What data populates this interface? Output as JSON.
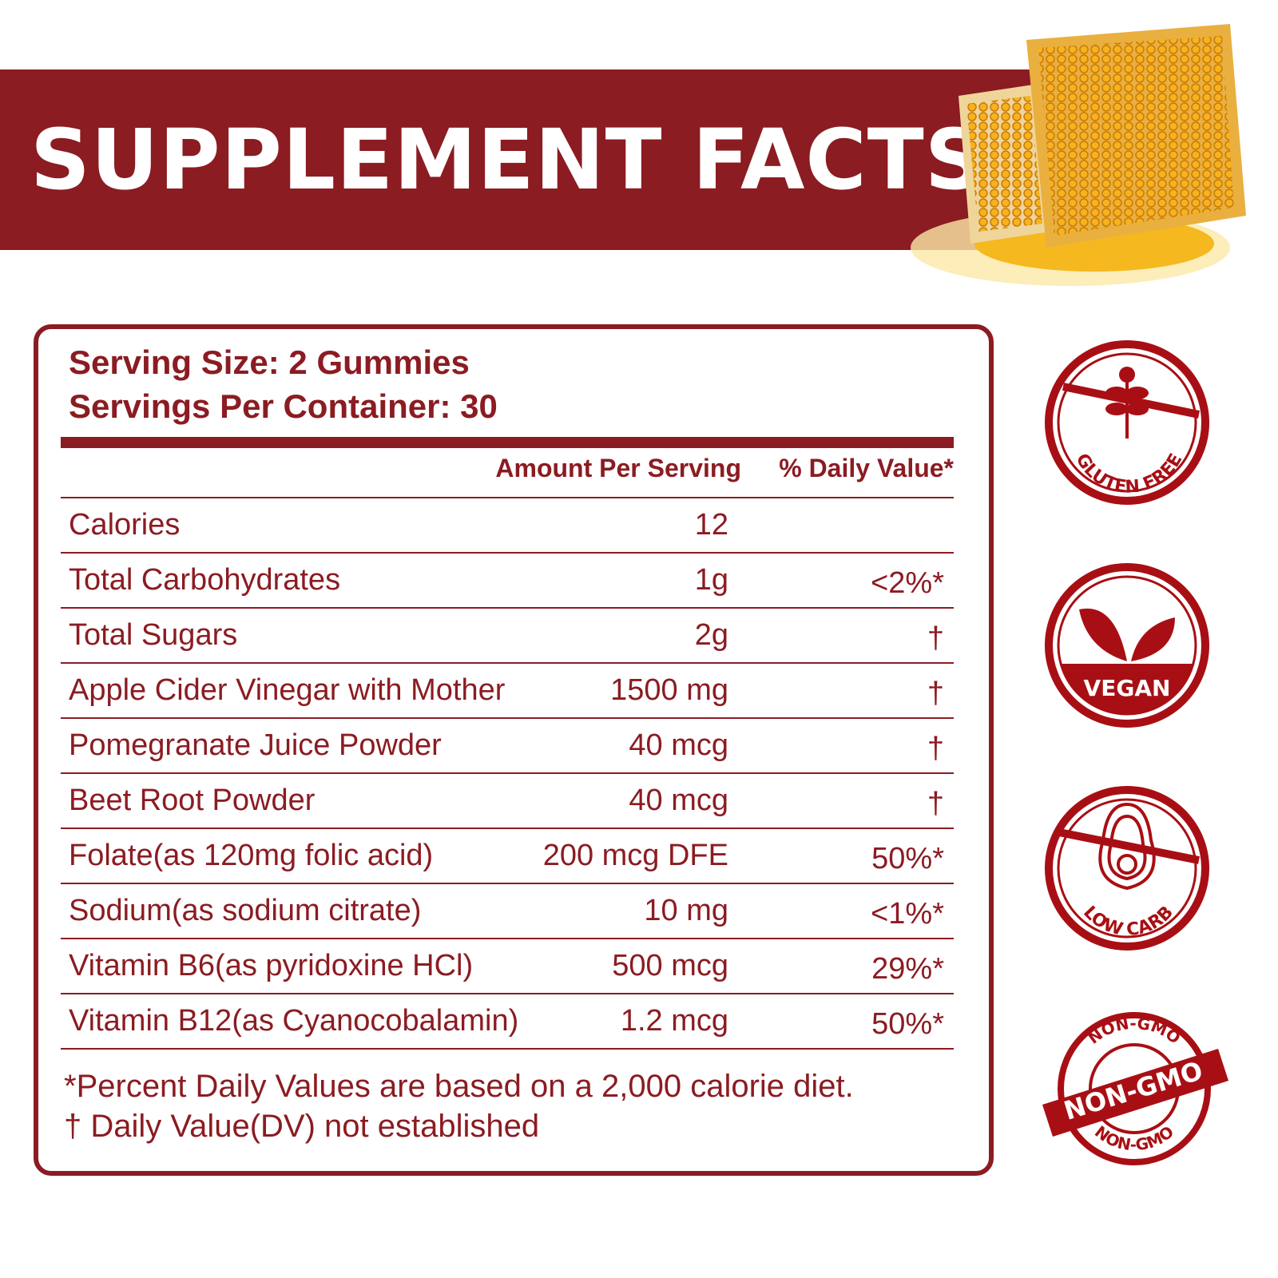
{
  "header": {
    "title": "SUPPLEMENT FACTS"
  },
  "brand_color": "#8b1c22",
  "panel": {
    "serving_size": "Serving Size: 2 Gummies",
    "servings_per_container": "Servings Per Container: 30",
    "col_amount": "Amount Per Serving",
    "col_dv": "% Daily Value*",
    "rows": [
      {
        "name": "Calories",
        "amount": "12",
        "dv": ""
      },
      {
        "name": "Total Carbohydrates",
        "amount": "1g",
        "dv": "<2%*"
      },
      {
        "name": "Total Sugars",
        "amount": "2g",
        "dv": "†"
      },
      {
        "name": "Apple Cider Vinegar with Mother",
        "amount": "1500 mg",
        "dv": "†"
      },
      {
        "name": "Pomegranate Juice Powder",
        "amount": "40 mcg",
        "dv": "†"
      },
      {
        "name": "Beet Root Powder",
        "amount": "40 mcg",
        "dv": "†"
      },
      {
        "name": "Folate(as 120mg folic acid)",
        "amount": "200 mcg DFE",
        "dv": "50%*"
      },
      {
        "name": "Sodium(as sodium citrate)",
        "amount": "10 mg",
        "dv": "<1%*"
      },
      {
        "name": "Vitamin B6(as pyridoxine HCl)",
        "amount": "500 mcg",
        "dv": "29%*"
      },
      {
        "name": "Vitamin B12(as Cyanocobalamin)",
        "amount": "1.2 mcg",
        "dv": "50%*"
      }
    ],
    "footnote_1": "*Percent Daily Values are based on a 2,000 calorie diet.",
    "footnote_2": " † Daily Value(DV) not established"
  },
  "badges": [
    {
      "label": "GLUTEN FREE",
      "icon": "wheat-crossed-icon"
    },
    {
      "label": "VEGAN",
      "icon": "leaves-icon"
    },
    {
      "label": "LOW CARB",
      "icon": "avocado-crossed-icon"
    },
    {
      "label": "NON-GMO",
      "icon": "seal-ribbon-icon"
    }
  ]
}
